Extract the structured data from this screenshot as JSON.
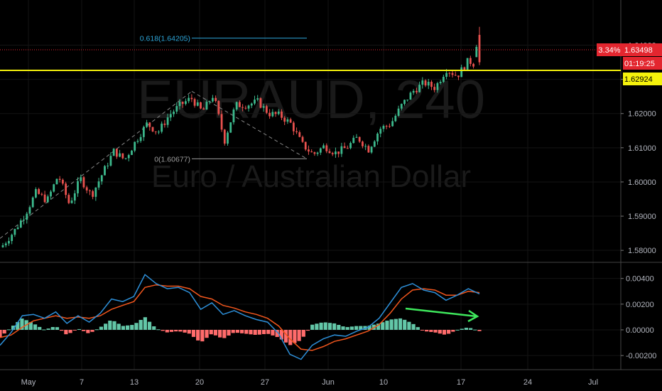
{
  "chart_data": {
    "type": "candlestick",
    "watermark": {
      "symbol": "EURAUD, 240",
      "name": "Euro / Australian Dollar"
    },
    "price_axis": {
      "ticks": [
        "1.64000",
        "1.63000",
        "1.62000",
        "1.61000",
        "1.60000",
        "1.59000",
        "1.58000"
      ],
      "range": [
        1.5765,
        1.6532
      ]
    },
    "macd_axis": {
      "ticks": [
        "0.00400",
        "0.00200",
        "0.00000",
        "-0.00200"
      ],
      "range": [
        -0.0031,
        0.0052
      ]
    },
    "date_axis": {
      "labels": [
        "May",
        "7",
        "13",
        "20",
        "27",
        "Jun",
        "10",
        "17",
        "24",
        "Jul"
      ]
    },
    "last_price": {
      "change": "3.34%",
      "price": "1.63498",
      "countdown": "01:19:25"
    },
    "horizontal_level": {
      "price": "1.62924",
      "color": "#f5f20c"
    },
    "fib": {
      "level_618": "0.618(1.64205)",
      "level_0": "0(1.60677)"
    },
    "anchor_prices": [
      1.5815,
      1.5855,
      1.5905,
      1.597,
      1.5945,
      1.602,
      1.5935,
      1.601,
      1.596,
      1.6025,
      1.609,
      1.6065,
      1.612,
      1.617,
      1.6145,
      1.6195,
      1.6225,
      1.6245,
      1.6205,
      1.6255,
      1.612,
      1.6225,
      1.6225,
      1.6235,
      1.62,
      1.6195,
      1.617,
      1.611,
      1.608,
      1.6105,
      1.6085,
      1.61,
      1.613,
      1.6095,
      1.6155,
      1.617,
      1.6225,
      1.6265,
      1.629,
      1.6275,
      1.633,
      1.631,
      1.6355,
      1.6335
    ],
    "macd": [
      -0.0012,
      -0.0002,
      0.0011,
      0.0012,
      0.0009,
      0.0014,
      0.0005,
      0.0011,
      0.0006,
      0.0013,
      0.0024,
      0.0022,
      0.0026,
      0.0043,
      0.0036,
      0.0032,
      0.0033,
      0.0029,
      0.0016,
      0.0021,
      0.0012,
      0.0015,
      0.0011,
      0.0008,
      0.0006,
      -0.0003,
      -0.0019,
      -0.0023,
      -0.0012,
      -0.0007,
      -0.0004,
      -0.0005,
      -0.0001,
      0.0002,
      0.0009,
      0.0021,
      0.0033,
      0.0036,
      0.0031,
      0.0029,
      0.0023,
      0.0027,
      0.0032,
      0.0028
    ],
    "signal": [
      -0.0006,
      -0.0004,
      0.0002,
      0.0007,
      0.0009,
      0.0011,
      0.0009,
      0.001,
      0.0009,
      0.0011,
      0.0016,
      0.0019,
      0.0022,
      0.0033,
      0.0035,
      0.0034,
      0.0034,
      0.0032,
      0.0026,
      0.0024,
      0.0019,
      0.0017,
      0.0014,
      0.0012,
      0.0009,
      0.0003,
      -0.0007,
      -0.0015,
      -0.0016,
      -0.0013,
      -0.0009,
      -0.0007,
      -0.0004,
      -0.0001,
      0.0004,
      0.0013,
      0.0024,
      0.0031,
      0.0032,
      0.0031,
      0.0027,
      0.0027,
      0.003,
      0.0029
    ],
    "colors": {
      "up": "#3cb88c",
      "down": "#e8514e",
      "macd": "#2d8fd8",
      "signal": "#f2561d",
      "hist_up": "#63c7a8",
      "hist_down": "#ff6b6b",
      "fib_618": "#2da5d8",
      "fib_0": "#9c9c9c",
      "arrow": "#3ee85c",
      "last_price": "#e3262f"
    }
  }
}
